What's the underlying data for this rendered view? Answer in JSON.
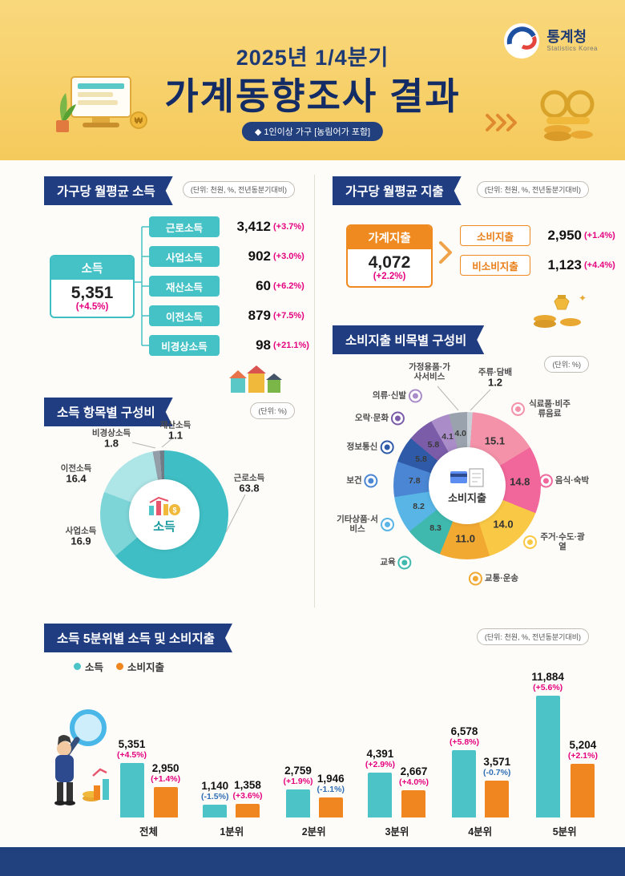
{
  "header": {
    "period": "2025년 1/4분기",
    "title": "가계동향조사 결과",
    "badge": "◆ 1인이상 가구 [농림어가 포함]",
    "logo_title": "통계청",
    "logo_subtitle": "Statistics Korea"
  },
  "income_summary": {
    "title": "가구당 월평균 소득",
    "unit": "(단위: 천원, %, 전년동분기대비)",
    "total_label": "소득",
    "total_value": "5,351",
    "total_change": "(+4.5%)",
    "items": [
      {
        "label": "근로소득",
        "value": "3,412",
        "change": "(+3.7%)"
      },
      {
        "label": "사업소득",
        "value": "902",
        "change": "(+3.0%)"
      },
      {
        "label": "재산소득",
        "value": "60",
        "change": "(+6.2%)"
      },
      {
        "label": "이전소득",
        "value": "879",
        "change": "(+7.5%)"
      },
      {
        "label": "비경상소득",
        "value": "98",
        "change": "(+21.1%)"
      }
    ]
  },
  "expenditure_summary": {
    "title": "가구당 월평균 지출",
    "unit": "(단위: 천원, %, 전년동분기대비)",
    "total_label": "가계지출",
    "total_value": "4,072",
    "total_change": "(+2.2%)",
    "items": [
      {
        "label": "소비지출",
        "value": "2,950",
        "change": "(+1.4%)"
      },
      {
        "label": "비소비지출",
        "value": "1,123",
        "change": "(+4.4%)"
      }
    ]
  },
  "chart_data": [
    {
      "id": "income-composition",
      "type": "pie",
      "title": "소득 항목별 구성비",
      "unit": "(단위: %)",
      "center_label": "소득",
      "labels": [
        "근로소득",
        "사업소득",
        "이전소득",
        "비경상소득",
        "재산소득"
      ],
      "values": [
        63.8,
        16.9,
        16.4,
        1.8,
        1.1
      ],
      "colors": [
        "#3fbfc5",
        "#7dd5d8",
        "#aee5e7",
        "#939ea8",
        "#707c86"
      ]
    },
    {
      "id": "expenditure-composition",
      "type": "pie",
      "title": "소비지출 비목별 구성비",
      "unit": "(단위: %)",
      "center_label": "소비지출",
      "labels": [
        "주류·담배",
        "식료품·비주류음료",
        "음식·숙박",
        "주거·수도·광열",
        "교통·운송",
        "교육",
        "기타상품·서비스",
        "보건",
        "정보통신",
        "오락·문화",
        "의류·신발",
        "가정용품·가사서비스"
      ],
      "values": [
        1.2,
        15.1,
        14.8,
        14.0,
        11.0,
        8.3,
        8.2,
        7.8,
        5.8,
        5.8,
        4.1,
        4.0
      ],
      "colors": [
        "#c9cfd6",
        "#f492a9",
        "#f2679b",
        "#f9c845",
        "#f2a932",
        "#3fb9ae",
        "#58b5e6",
        "#4a86d3",
        "#2f5aa8",
        "#7a5ca8",
        "#a98cc8",
        "#9aa3ad"
      ]
    },
    {
      "id": "quintile-income-expenditure",
      "type": "bar",
      "title": "소득 5분위별 소득 및 소비지출",
      "unit": "(단위: 천원, %, 전년동분기대비)",
      "categories": [
        "전체",
        "1분위",
        "2분위",
        "3분위",
        "4분위",
        "5분위"
      ],
      "series": [
        {
          "name": "소득",
          "color": "#4cc3c7",
          "values": [
            5351,
            1140,
            2759,
            4391,
            6578,
            11884
          ],
          "display": [
            "5,351",
            "1,140",
            "2,759",
            "4,391",
            "6,578",
            "11,884"
          ],
          "changes": [
            "(+4.5%)",
            "(-1.5%)",
            "(+1.9%)",
            "(+2.9%)",
            "(+5.8%)",
            "(+5.6%)"
          ]
        },
        {
          "name": "소비지출",
          "color": "#f0861f",
          "values": [
            2950,
            1358,
            1946,
            2667,
            3571,
            5204
          ],
          "display": [
            "2,950",
            "1,358",
            "1,946",
            "2,667",
            "3,571",
            "5,204"
          ],
          "changes": [
            "(+1.4%)",
            "(+3.6%)",
            "(-1.1%)",
            "(+4.0%)",
            "(-0.7%)",
            "(+2.1%)"
          ]
        }
      ]
    }
  ]
}
